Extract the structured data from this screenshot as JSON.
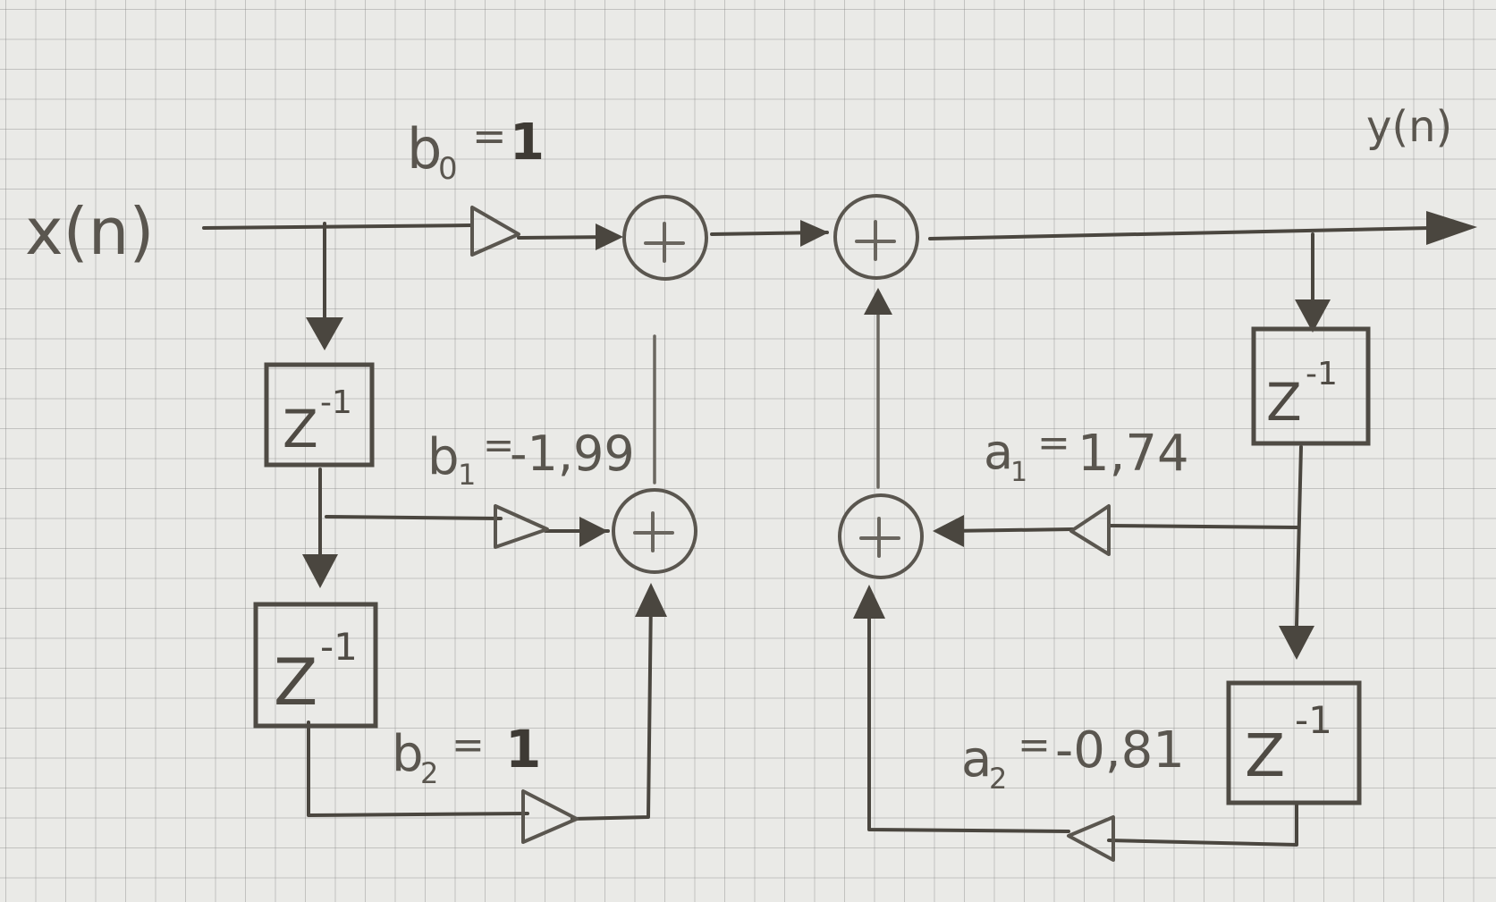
{
  "signals": {
    "input": "x(n)",
    "output": "y(n)"
  },
  "coefficients": {
    "b0": {
      "name": "b",
      "sub": "0",
      "eq": "=",
      "value": "1"
    },
    "b1": {
      "name": "b",
      "sub": "1",
      "eq": "=",
      "value": "-1,99"
    },
    "b2": {
      "name": "b",
      "sub": "2",
      "eq": "=",
      "value": "1"
    },
    "a1": {
      "name": "a",
      "sub": "1",
      "eq": "=",
      "value": "1,74"
    },
    "a2": {
      "name": "a",
      "sub": "2",
      "eq": "=",
      "value": "-0,81"
    }
  },
  "delay": {
    "base": "Z",
    "exponent": "-1"
  },
  "adder": {
    "symbol": "+"
  },
  "colors": {
    "ink": "#4a463f",
    "paper": "#eaeae7",
    "grid": "#7a7a7a"
  }
}
